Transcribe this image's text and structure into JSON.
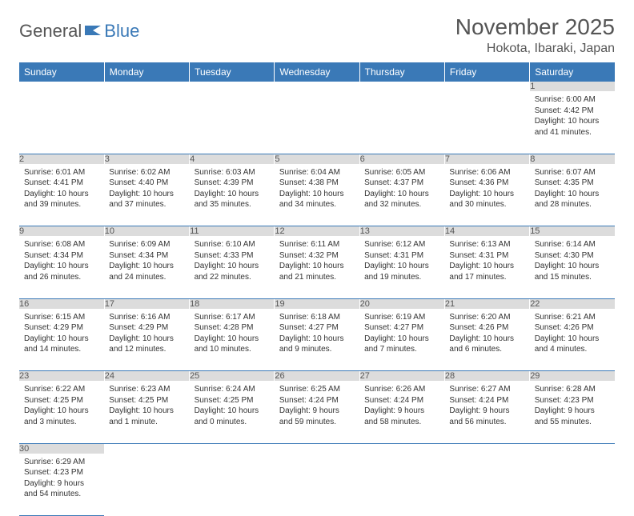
{
  "logo": {
    "text_a": "General",
    "text_b": "Blue"
  },
  "title": "November 2025",
  "location": "Hokota, Ibaraki, Japan",
  "colors": {
    "header_bg": "#3a79b7",
    "header_fg": "#ffffff",
    "daynum_bg": "#dcdcdc",
    "daynum_fg": "#555555",
    "rule": "#3a79b7"
  },
  "weekdays": [
    "Sunday",
    "Monday",
    "Tuesday",
    "Wednesday",
    "Thursday",
    "Friday",
    "Saturday"
  ],
  "weeks": [
    [
      {
        "n": "",
        "sr": "",
        "ss": "",
        "dl": ""
      },
      {
        "n": "",
        "sr": "",
        "ss": "",
        "dl": ""
      },
      {
        "n": "",
        "sr": "",
        "ss": "",
        "dl": ""
      },
      {
        "n": "",
        "sr": "",
        "ss": "",
        "dl": ""
      },
      {
        "n": "",
        "sr": "",
        "ss": "",
        "dl": ""
      },
      {
        "n": "",
        "sr": "",
        "ss": "",
        "dl": ""
      },
      {
        "n": "1",
        "sr": "Sunrise: 6:00 AM",
        "ss": "Sunset: 4:42 PM",
        "dl": "Daylight: 10 hours and 41 minutes."
      }
    ],
    [
      {
        "n": "2",
        "sr": "Sunrise: 6:01 AM",
        "ss": "Sunset: 4:41 PM",
        "dl": "Daylight: 10 hours and 39 minutes."
      },
      {
        "n": "3",
        "sr": "Sunrise: 6:02 AM",
        "ss": "Sunset: 4:40 PM",
        "dl": "Daylight: 10 hours and 37 minutes."
      },
      {
        "n": "4",
        "sr": "Sunrise: 6:03 AM",
        "ss": "Sunset: 4:39 PM",
        "dl": "Daylight: 10 hours and 35 minutes."
      },
      {
        "n": "5",
        "sr": "Sunrise: 6:04 AM",
        "ss": "Sunset: 4:38 PM",
        "dl": "Daylight: 10 hours and 34 minutes."
      },
      {
        "n": "6",
        "sr": "Sunrise: 6:05 AM",
        "ss": "Sunset: 4:37 PM",
        "dl": "Daylight: 10 hours and 32 minutes."
      },
      {
        "n": "7",
        "sr": "Sunrise: 6:06 AM",
        "ss": "Sunset: 4:36 PM",
        "dl": "Daylight: 10 hours and 30 minutes."
      },
      {
        "n": "8",
        "sr": "Sunrise: 6:07 AM",
        "ss": "Sunset: 4:35 PM",
        "dl": "Daylight: 10 hours and 28 minutes."
      }
    ],
    [
      {
        "n": "9",
        "sr": "Sunrise: 6:08 AM",
        "ss": "Sunset: 4:34 PM",
        "dl": "Daylight: 10 hours and 26 minutes."
      },
      {
        "n": "10",
        "sr": "Sunrise: 6:09 AM",
        "ss": "Sunset: 4:34 PM",
        "dl": "Daylight: 10 hours and 24 minutes."
      },
      {
        "n": "11",
        "sr": "Sunrise: 6:10 AM",
        "ss": "Sunset: 4:33 PM",
        "dl": "Daylight: 10 hours and 22 minutes."
      },
      {
        "n": "12",
        "sr": "Sunrise: 6:11 AM",
        "ss": "Sunset: 4:32 PM",
        "dl": "Daylight: 10 hours and 21 minutes."
      },
      {
        "n": "13",
        "sr": "Sunrise: 6:12 AM",
        "ss": "Sunset: 4:31 PM",
        "dl": "Daylight: 10 hours and 19 minutes."
      },
      {
        "n": "14",
        "sr": "Sunrise: 6:13 AM",
        "ss": "Sunset: 4:31 PM",
        "dl": "Daylight: 10 hours and 17 minutes."
      },
      {
        "n": "15",
        "sr": "Sunrise: 6:14 AM",
        "ss": "Sunset: 4:30 PM",
        "dl": "Daylight: 10 hours and 15 minutes."
      }
    ],
    [
      {
        "n": "16",
        "sr": "Sunrise: 6:15 AM",
        "ss": "Sunset: 4:29 PM",
        "dl": "Daylight: 10 hours and 14 minutes."
      },
      {
        "n": "17",
        "sr": "Sunrise: 6:16 AM",
        "ss": "Sunset: 4:29 PM",
        "dl": "Daylight: 10 hours and 12 minutes."
      },
      {
        "n": "18",
        "sr": "Sunrise: 6:17 AM",
        "ss": "Sunset: 4:28 PM",
        "dl": "Daylight: 10 hours and 10 minutes."
      },
      {
        "n": "19",
        "sr": "Sunrise: 6:18 AM",
        "ss": "Sunset: 4:27 PM",
        "dl": "Daylight: 10 hours and 9 minutes."
      },
      {
        "n": "20",
        "sr": "Sunrise: 6:19 AM",
        "ss": "Sunset: 4:27 PM",
        "dl": "Daylight: 10 hours and 7 minutes."
      },
      {
        "n": "21",
        "sr": "Sunrise: 6:20 AM",
        "ss": "Sunset: 4:26 PM",
        "dl": "Daylight: 10 hours and 6 minutes."
      },
      {
        "n": "22",
        "sr": "Sunrise: 6:21 AM",
        "ss": "Sunset: 4:26 PM",
        "dl": "Daylight: 10 hours and 4 minutes."
      }
    ],
    [
      {
        "n": "23",
        "sr": "Sunrise: 6:22 AM",
        "ss": "Sunset: 4:25 PM",
        "dl": "Daylight: 10 hours and 3 minutes."
      },
      {
        "n": "24",
        "sr": "Sunrise: 6:23 AM",
        "ss": "Sunset: 4:25 PM",
        "dl": "Daylight: 10 hours and 1 minute."
      },
      {
        "n": "25",
        "sr": "Sunrise: 6:24 AM",
        "ss": "Sunset: 4:25 PM",
        "dl": "Daylight: 10 hours and 0 minutes."
      },
      {
        "n": "26",
        "sr": "Sunrise: 6:25 AM",
        "ss": "Sunset: 4:24 PM",
        "dl": "Daylight: 9 hours and 59 minutes."
      },
      {
        "n": "27",
        "sr": "Sunrise: 6:26 AM",
        "ss": "Sunset: 4:24 PM",
        "dl": "Daylight: 9 hours and 58 minutes."
      },
      {
        "n": "28",
        "sr": "Sunrise: 6:27 AM",
        "ss": "Sunset: 4:24 PM",
        "dl": "Daylight: 9 hours and 56 minutes."
      },
      {
        "n": "29",
        "sr": "Sunrise: 6:28 AM",
        "ss": "Sunset: 4:23 PM",
        "dl": "Daylight: 9 hours and 55 minutes."
      }
    ],
    [
      {
        "n": "30",
        "sr": "Sunrise: 6:29 AM",
        "ss": "Sunset: 4:23 PM",
        "dl": "Daylight: 9 hours and 54 minutes."
      },
      {
        "n": "",
        "sr": "",
        "ss": "",
        "dl": ""
      },
      {
        "n": "",
        "sr": "",
        "ss": "",
        "dl": ""
      },
      {
        "n": "",
        "sr": "",
        "ss": "",
        "dl": ""
      },
      {
        "n": "",
        "sr": "",
        "ss": "",
        "dl": ""
      },
      {
        "n": "",
        "sr": "",
        "ss": "",
        "dl": ""
      },
      {
        "n": "",
        "sr": "",
        "ss": "",
        "dl": ""
      }
    ]
  ]
}
